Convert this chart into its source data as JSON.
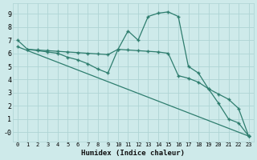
{
  "line1_x": [
    0,
    1,
    2,
    3,
    4,
    5,
    6,
    7,
    8,
    9,
    10,
    11,
    12,
    13,
    14,
    15,
    16,
    17,
    18,
    19,
    20,
    21,
    22,
    23
  ],
  "line1_y": [
    7.0,
    6.3,
    6.2,
    6.1,
    6.0,
    5.7,
    5.5,
    5.2,
    4.8,
    4.5,
    6.3,
    7.7,
    7.0,
    8.8,
    9.05,
    9.15,
    8.8,
    5.0,
    4.5,
    3.3,
    2.2,
    1.0,
    0.7,
    -0.3
  ],
  "line2_x": [
    1,
    2,
    3,
    4,
    5,
    6,
    7,
    8,
    9,
    10,
    11,
    12,
    13,
    14,
    15,
    16,
    17,
    18,
    19,
    20,
    21,
    22,
    23
  ],
  "line2_y": [
    6.3,
    6.25,
    6.2,
    6.15,
    6.1,
    6.05,
    6.0,
    5.95,
    5.9,
    6.3,
    6.25,
    6.2,
    6.15,
    6.1,
    6.0,
    4.3,
    4.1,
    3.8,
    3.3,
    2.9,
    2.5,
    1.8,
    -0.3
  ],
  "line3_x": [
    0,
    23
  ],
  "line3_y": [
    6.5,
    -0.3
  ],
  "color": "#2e7d6e",
  "bg_color": "#ceeaea",
  "grid_color": "#aed4d4",
  "xlim": [
    -0.5,
    23.5
  ],
  "ylim": [
    -0.7,
    9.8
  ],
  "xlabel": "Humidex (Indice chaleur)",
  "xticks": [
    0,
    1,
    2,
    3,
    4,
    5,
    6,
    7,
    8,
    9,
    10,
    11,
    12,
    13,
    14,
    15,
    16,
    17,
    18,
    19,
    20,
    21,
    22,
    23
  ],
  "yticks": [
    0,
    1,
    2,
    3,
    4,
    5,
    6,
    7,
    8,
    9
  ],
  "ytick_labels": [
    "-0",
    "1",
    "2",
    "3",
    "4",
    "5",
    "6",
    "7",
    "8",
    "9"
  ],
  "marker": "+"
}
